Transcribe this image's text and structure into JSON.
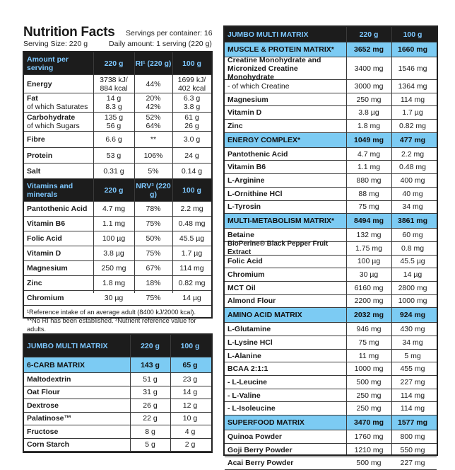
{
  "nutrition": {
    "title": "Nutrition Facts",
    "serving_size": "Serving Size: 220 g",
    "servings_per_container": "Servings per container: 16",
    "daily_amount": "Daily amount: 1 serving (220 g)",
    "main_header": [
      "Amount per serving",
      "220 g",
      "RI¹ (220 g)",
      "100 g"
    ],
    "main_rows": [
      {
        "name": "Energy",
        "v220": "3738 kJ/\n884 kcal",
        "ri": "44%",
        "v100": "1699 kJ/\n402 kcal"
      },
      {
        "name": "Fat\nof which Saturates",
        "v220": "14 g\n8.3 g",
        "ri": "20%\n42%",
        "v100": "6.3 g\n3.8 g"
      },
      {
        "name": "Carbohydrate\nof which Sugars",
        "v220": "135 g\n56 g",
        "ri": "52%\n64%",
        "v100": "61 g\n26 g"
      },
      {
        "name": "Fibre",
        "v220": "6.6 g",
        "ri": "**",
        "v100": "3.0 g"
      },
      {
        "name": "Protein",
        "v220": "53 g",
        "ri": "106%",
        "v100": "24 g"
      },
      {
        "name": "Salt",
        "v220": "0.31 g",
        "ri": "5%",
        "v100": "0.14 g"
      }
    ],
    "vit_header": [
      "Vitamins and minerals",
      "220 g",
      "NRV³ (220 g)",
      "100 g"
    ],
    "vit_rows": [
      {
        "name": "Pantothenic Acid",
        "v220": "4.7 mg",
        "ri": "78%",
        "v100": "2.2 mg"
      },
      {
        "name": "Vitamin B6",
        "v220": "1.1 mg",
        "ri": "75%",
        "v100": "0.48 mg"
      },
      {
        "name": "Folic Acid",
        "v220": "100 µg",
        "ri": "50%",
        "v100": "45.5 µg"
      },
      {
        "name": "Vitamin D",
        "v220": "3.8 µg",
        "ri": "75%",
        "v100": "1.7 µg"
      },
      {
        "name": "Magnesium",
        "v220": "250 mg",
        "ri": "67%",
        "v100": "114 mg"
      },
      {
        "name": "Zinc",
        "v220": "1.8 mg",
        "ri": "18%",
        "v100": "0.82 mg"
      },
      {
        "name": "Chromium",
        "v220": "30 µg",
        "ri": "75%",
        "v100": "14 µg"
      }
    ],
    "footnote_1": "¹Reference intake of an average adult (8400 kJ/2000 kcal).",
    "footnote_2": "**No RI has been established. ³Nutrient reference value for adults."
  },
  "left_matrix": {
    "header": [
      "JUMBO MULTI MATRIX",
      "220 g",
      "100 g"
    ],
    "section": [
      "6-CARB MATRIX",
      "143 g",
      "65 g"
    ],
    "rows": [
      {
        "name": "Maltodextrin",
        "v220": "51 g",
        "v100": "23 g"
      },
      {
        "name": "Oat Flour",
        "v220": "31 g",
        "v100": "14 g"
      },
      {
        "name": "Dextrose",
        "v220": "26 g",
        "v100": "12 g"
      },
      {
        "name": "Palatinose™",
        "v220": "22 g",
        "v100": "10 g"
      },
      {
        "name": "Fructose",
        "v220": "8 g",
        "v100": "4 g"
      },
      {
        "name": "Corn Starch",
        "v220": "5 g",
        "v100": "2 g"
      }
    ]
  },
  "right_matrix": {
    "header": [
      "JUMBO MULTI MATRIX",
      "220 g",
      "100 g"
    ],
    "sections": [
      {
        "title": [
          "MUSCLE & PROTEIN MATRIX*",
          "3652 mg",
          "1660 mg"
        ],
        "rows": [
          {
            "name": "Creatine Monohydrate and\nMicronized Creatine Monohydrate",
            "v220": "3400 mg",
            "v100": "1546 mg",
            "tall": true
          },
          {
            "name": "- of which Creatine",
            "v220": "3000 mg",
            "v100": "1364 mg"
          },
          {
            "name": "Magnesium",
            "v220": "250 mg",
            "v100": "114 mg"
          },
          {
            "name": "Vitamin D",
            "v220": "3.8 µg",
            "v100": "1.7 µg"
          },
          {
            "name": "Zinc",
            "v220": "1.8 mg",
            "v100": "0.82 mg"
          }
        ]
      },
      {
        "title": [
          "ENERGY COMPLEX*",
          "1049 mg",
          "477 mg"
        ],
        "rows": [
          {
            "name": "Pantothenic Acid",
            "v220": "4.7 mg",
            "v100": "2.2 mg"
          },
          {
            "name": "Vitamin B6",
            "v220": "1.1 mg",
            "v100": "0.48 mg"
          },
          {
            "name": "L-Arginine",
            "v220": "880 mg",
            "v100": "400 mg"
          },
          {
            "name": "L-Ornithine HCl",
            "v220": "88 mg",
            "v100": "40 mg"
          },
          {
            "name": "L-Tyrosin",
            "v220": "75 mg",
            "v100": "34 mg"
          }
        ]
      },
      {
        "title": [
          "MULTI-METABOLISM MATRIX*",
          "8494 mg",
          "3861 mg"
        ],
        "rows": [
          {
            "name": "Betaine",
            "v220": "132 mg",
            "v100": "60 mg"
          },
          {
            "name": "BioPerine® Black Pepper Fruit Extract",
            "v220": "1.75 mg",
            "v100": "0.8 mg"
          },
          {
            "name": "Folic Acid",
            "v220": "100 µg",
            "v100": "45.5 µg"
          },
          {
            "name": "Chromium",
            "v220": "30 µg",
            "v100": "14 µg"
          },
          {
            "name": "MCT Oil",
            "v220": "6160 mg",
            "v100": "2800 mg"
          },
          {
            "name": "Almond Flour",
            "v220": "2200 mg",
            "v100": "1000 mg"
          }
        ]
      },
      {
        "title": [
          "AMINO ACID MATRIX",
          "2032 mg",
          "924 mg"
        ],
        "rows": [
          {
            "name": "L-Glutamine",
            "v220": "946 mg",
            "v100": "430 mg"
          },
          {
            "name": "L-Lysine HCl",
            "v220": "75 mg",
            "v100": "34 mg"
          },
          {
            "name": "L-Alanine",
            "v220": "11 mg",
            "v100": "5 mg"
          },
          {
            "name": "BCAA 2:1:1",
            "v220": "1000 mg",
            "v100": "455 mg"
          },
          {
            "name": "- L-Leucine",
            "v220": "500 mg",
            "v100": "227 mg"
          },
          {
            "name": "- L-Valine",
            "v220": "250 mg",
            "v100": "114 mg"
          },
          {
            "name": "- L-Isoleucine",
            "v220": "250 mg",
            "v100": "114 mg"
          }
        ]
      },
      {
        "title": [
          "SUPERFOOD MATRIX",
          "3470 mg",
          "1577 mg"
        ],
        "rows": [
          {
            "name": "Quinoa Powder",
            "v220": "1760 mg",
            "v100": "800 mg"
          },
          {
            "name": "Goji Berry Powder",
            "v220": "1210 mg",
            "v100": "550 mg"
          },
          {
            "name": "Acai Berry Powder",
            "v220": "500 mg",
            "v100": "227 mg"
          }
        ]
      }
    ]
  },
  "colors": {
    "dark_header": "#1c1c1c",
    "header_text": "#7ec8ff",
    "section_blue": "#7ccbf3"
  }
}
